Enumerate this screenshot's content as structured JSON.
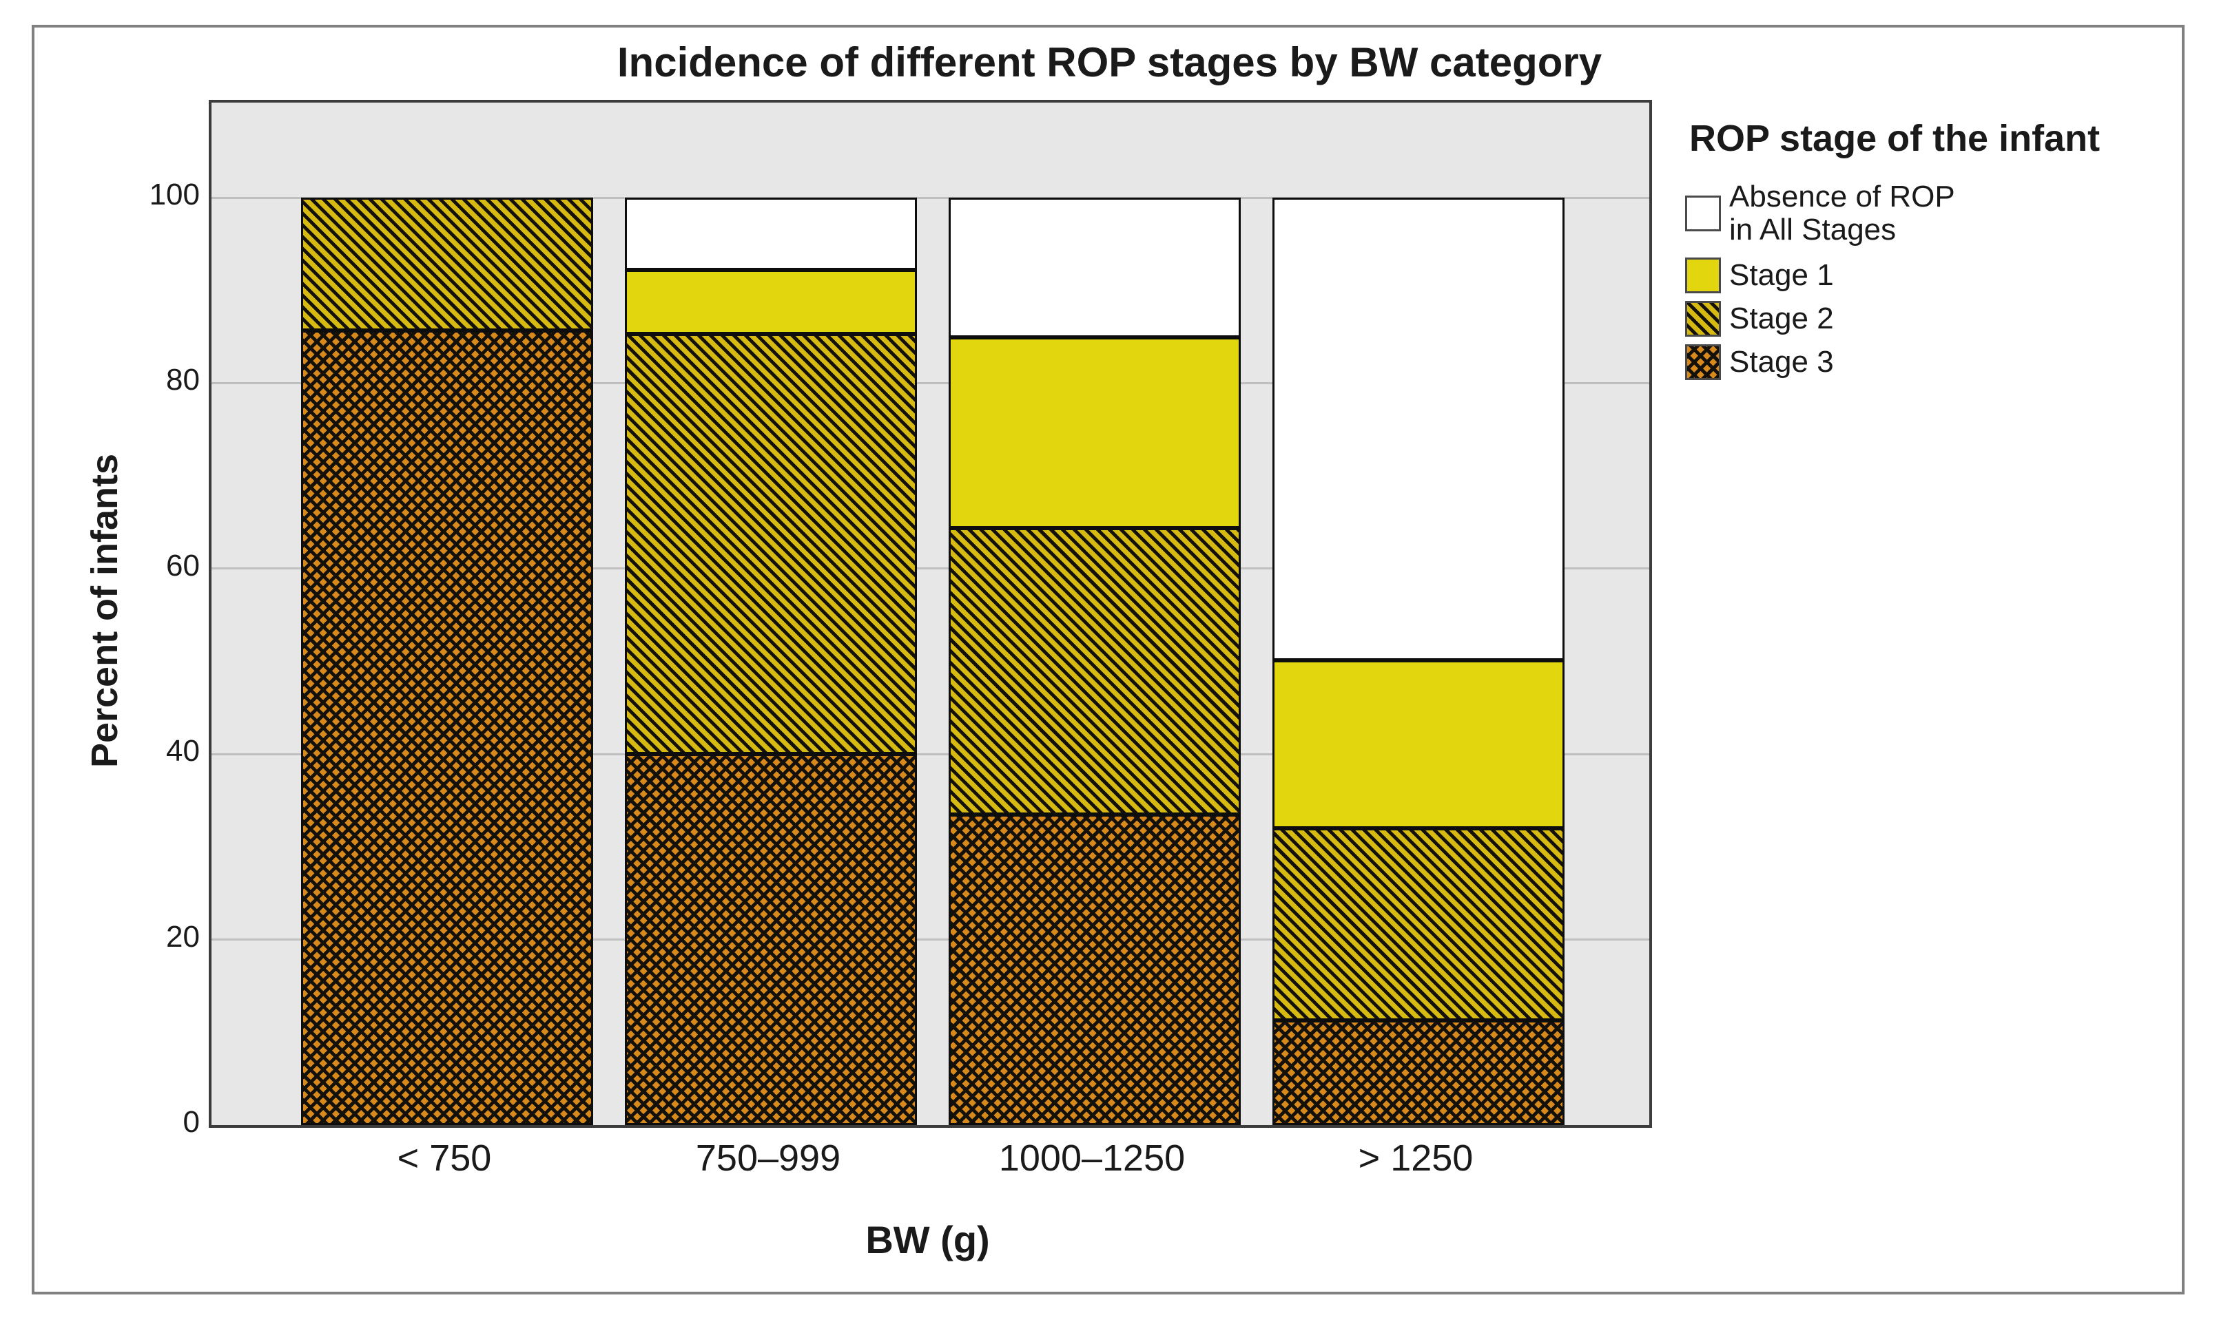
{
  "title": "Incidence of different ROP stages by BW category",
  "axes": {
    "y_label": "Percent of infants",
    "x_label": "BW (g)",
    "y_ticks": [
      0,
      20,
      40,
      60,
      80,
      100
    ]
  },
  "legend": {
    "title": "ROP stage of the infant",
    "items": [
      {
        "label": "Absence of ROP",
        "label2": "in All Stages",
        "swatch": "absence-white"
      },
      {
        "label": "Stage 1",
        "swatch": "stage1-solid-yellow"
      },
      {
        "label": "Stage 2",
        "swatch": "stage2-diagonal-hatch"
      },
      {
        "label": "Stage 3",
        "swatch": "stage3-crosshatch"
      }
    ]
  },
  "colors": {
    "stage1": "#e2d60e",
    "stage2_base": "#d6ba12",
    "stage3_base": "#d8891b",
    "hatch_line": "#14100a",
    "absence": "#ffffff",
    "plot_bg": "#e7e7e7",
    "gridline": "#bfbfbf",
    "bar_border": "#0d0d0d",
    "frame": "#3c3c3c",
    "outer_border": "#808080",
    "text": "#1a1a1a"
  },
  "chart_data": {
    "type": "bar",
    "stacked": true,
    "percent_scale": true,
    "title": "Incidence of different ROP stages by BW category",
    "xlabel": "BW (g)",
    "ylabel": "Percent of infants",
    "ylim": [
      0,
      110
    ],
    "grid": true,
    "legend_position": "right",
    "categories": [
      "< 750",
      "750–999",
      "1000–1250",
      "> 1250"
    ],
    "series": [
      {
        "name": "Stage 3",
        "pattern": "crosshatch",
        "color": "#d8891b",
        "values": [
          85.7,
          40.0,
          33.5,
          11.3
        ]
      },
      {
        "name": "Stage 2",
        "pattern": "hatch",
        "color": "#d6ba12",
        "values": [
          14.3,
          45.3,
          30.9,
          20.7
        ]
      },
      {
        "name": "Stage 1",
        "pattern": "solid",
        "color": "#e2d60e",
        "values": [
          0,
          6.9,
          20.5,
          18.1
        ]
      },
      {
        "name": "Absence of ROP in All Stages",
        "pattern": "solid",
        "color": "#ffffff",
        "values": [
          0,
          7.8,
          15.1,
          49.9
        ]
      }
    ]
  }
}
